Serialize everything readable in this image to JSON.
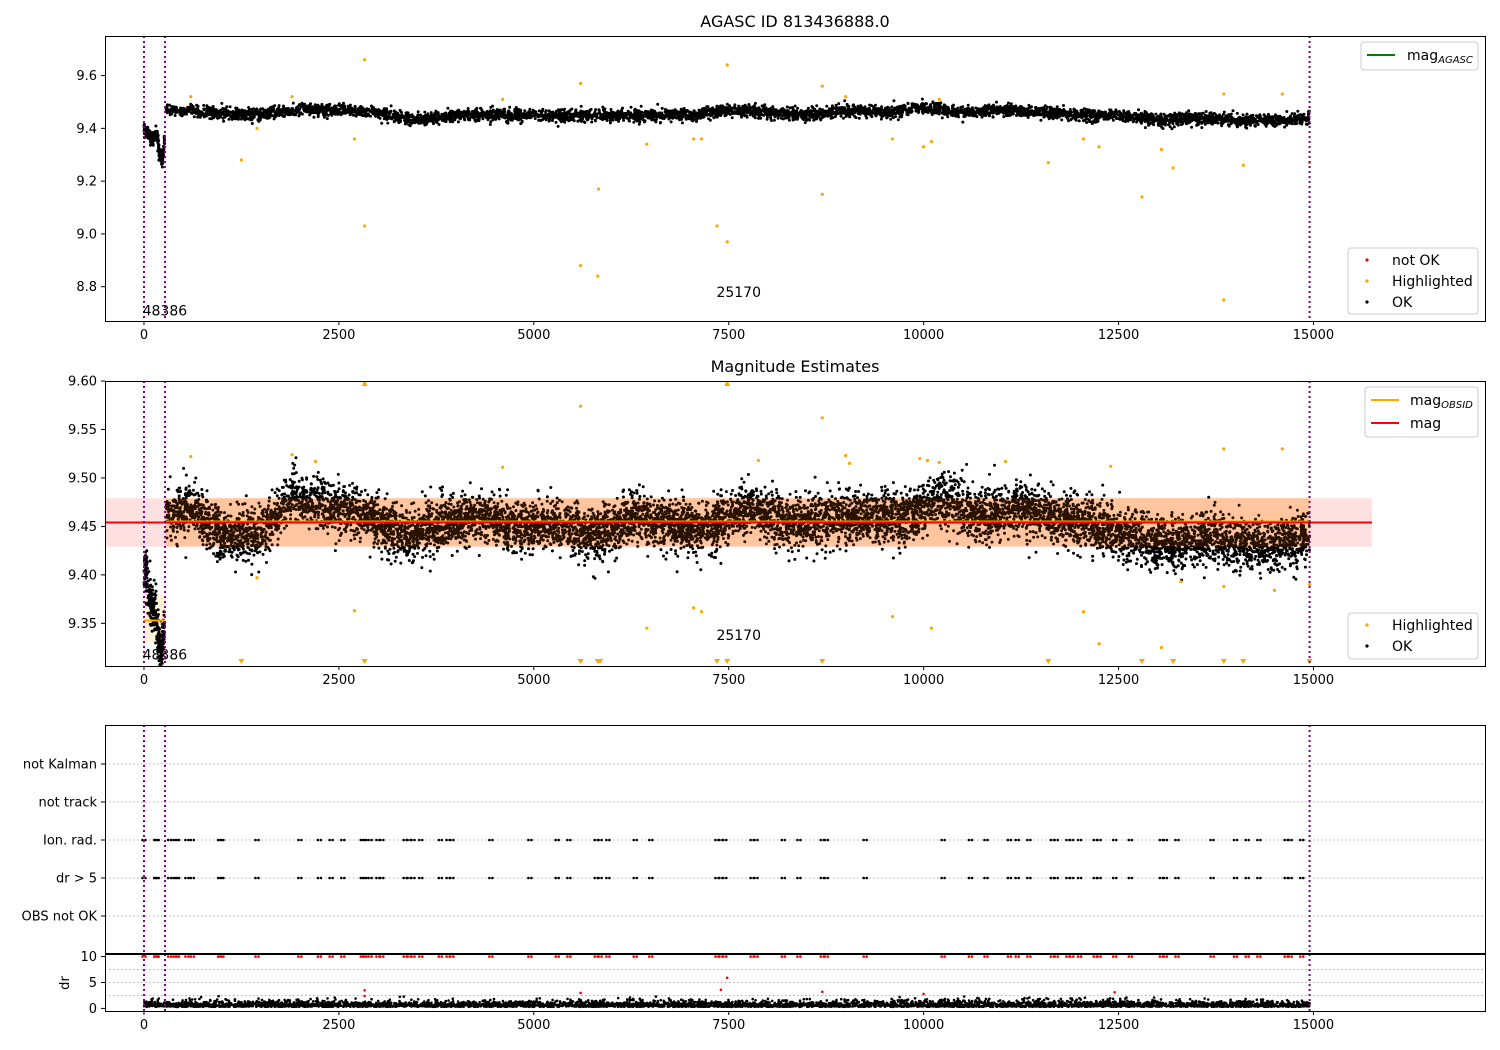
{
  "chart_data": [
    {
      "type": "scatter",
      "title": "AGASC ID 813436888.0",
      "xlim": [
        -500,
        17200
      ],
      "ylim": [
        8.67,
        9.75
      ],
      "xticks": [
        "0",
        "2500",
        "5000",
        "7500",
        "10000",
        "12500",
        "15000"
      ],
      "yticks": [
        "8.8",
        "9.0",
        "9.2",
        "9.4",
        "9.6"
      ],
      "xtick_values": [
        0,
        2500,
        5000,
        7500,
        10000,
        12500,
        15000
      ],
      "ytick_values": [
        8.8,
        9.0,
        9.2,
        9.4,
        9.6
      ],
      "obsid_boundaries": [
        0,
        270,
        14950
      ],
      "obsid_labels": [
        {
          "text": "48386",
          "x": 140,
          "y": 8.71
        },
        {
          "text": "25170",
          "x": 7500,
          "y": 8.78
        }
      ],
      "legend_top": [
        {
          "label": "mag",
          "sub": "AGASC",
          "color": "#008000"
        }
      ],
      "legend_bottom": [
        {
          "label": "not OK",
          "color": "#ff0000"
        },
        {
          "label": "Highlighted",
          "color": "#ffa500"
        },
        {
          "label": "OK",
          "color": "#000000"
        }
      ],
      "ok_trend": [
        {
          "x": 280,
          "y": 9.47
        },
        {
          "x": 800,
          "y": 9.46
        },
        {
          "x": 1400,
          "y": 9.45
        },
        {
          "x": 2000,
          "y": 9.47
        },
        {
          "x": 2500,
          "y": 9.47
        },
        {
          "x": 3000,
          "y": 9.46
        },
        {
          "x": 3500,
          "y": 9.43
        },
        {
          "x": 4000,
          "y": 9.45
        },
        {
          "x": 4500,
          "y": 9.45
        },
        {
          "x": 5000,
          "y": 9.45
        },
        {
          "x": 5500,
          "y": 9.45
        },
        {
          "x": 6000,
          "y": 9.45
        },
        {
          "x": 6500,
          "y": 9.45
        },
        {
          "x": 7000,
          "y": 9.45
        },
        {
          "x": 7500,
          "y": 9.47
        },
        {
          "x": 8000,
          "y": 9.46
        },
        {
          "x": 8500,
          "y": 9.45
        },
        {
          "x": 9000,
          "y": 9.47
        },
        {
          "x": 9500,
          "y": 9.46
        },
        {
          "x": 10000,
          "y": 9.48
        },
        {
          "x": 10500,
          "y": 9.46
        },
        {
          "x": 11000,
          "y": 9.47
        },
        {
          "x": 11500,
          "y": 9.46
        },
        {
          "x": 12000,
          "y": 9.45
        },
        {
          "x": 12500,
          "y": 9.45
        },
        {
          "x": 13000,
          "y": 9.43
        },
        {
          "x": 13500,
          "y": 9.44
        },
        {
          "x": 14000,
          "y": 9.43
        },
        {
          "x": 14500,
          "y": 9.43
        },
        {
          "x": 14950,
          "y": 9.44
        }
      ],
      "ok_first_segment": [
        {
          "x": 0,
          "y": 9.4
        },
        {
          "x": 60,
          "y": 9.38
        },
        {
          "x": 120,
          "y": 9.36
        },
        {
          "x": 170,
          "y": 9.38
        },
        {
          "x": 200,
          "y": 9.3
        },
        {
          "x": 240,
          "y": 9.28
        },
        {
          "x": 265,
          "y": 9.36
        }
      ],
      "highlighted_points": [
        [
          1250,
          9.28
        ],
        [
          1450,
          9.4
        ],
        [
          1900,
          9.52
        ],
        [
          2700,
          9.36
        ],
        [
          2830,
          9.66
        ],
        [
          2830,
          9.03
        ],
        [
          5600,
          9.57
        ],
        [
          5600,
          8.88
        ],
        [
          5820,
          8.84
        ],
        [
          5830,
          9.17
        ],
        [
          6450,
          9.34
        ],
        [
          7050,
          9.36
        ],
        [
          7150,
          9.36
        ],
        [
          7350,
          9.03
        ],
        [
          7480,
          9.64
        ],
        [
          7480,
          8.97
        ],
        [
          8700,
          9.56
        ],
        [
          8700,
          9.15
        ],
        [
          9600,
          9.36
        ],
        [
          10000,
          9.33
        ],
        [
          10100,
          9.35
        ],
        [
          11600,
          9.27
        ],
        [
          12050,
          9.36
        ],
        [
          12250,
          9.33
        ],
        [
          12800,
          9.14
        ],
        [
          13050,
          9.32
        ],
        [
          13200,
          9.25
        ],
        [
          13850,
          9.53
        ],
        [
          13850,
          8.75
        ],
        [
          14100,
          9.26
        ],
        [
          14600,
          9.53
        ],
        [
          14950,
          9.27
        ],
        [
          4600,
          9.51
        ],
        [
          600,
          9.52
        ],
        [
          10200,
          9.51
        ],
        [
          9000,
          9.52
        ]
      ]
    },
    {
      "type": "scatter",
      "title": "Magnitude Estimates",
      "xlim": [
        -500,
        17200
      ],
      "ylim": [
        9.306,
        9.6
      ],
      "xticks": [
        "0",
        "2500",
        "5000",
        "7500",
        "10000",
        "12500",
        "15000"
      ],
      "yticks": [
        "9.35",
        "9.40",
        "9.45",
        "9.50",
        "9.55",
        "9.60"
      ],
      "xtick_values": [
        0,
        2500,
        5000,
        7500,
        10000,
        12500,
        15000
      ],
      "ytick_values": [
        9.35,
        9.4,
        9.45,
        9.5,
        9.55,
        9.6
      ],
      "obsid_boundaries": [
        0,
        270,
        14950
      ],
      "obsid_labels": [
        {
          "text": "48386",
          "x": 140,
          "y": 9.318
        },
        {
          "text": "25170",
          "x": 7500,
          "y": 9.338
        }
      ],
      "mag": 9.454,
      "mag_band": [
        9.429,
        9.479
      ],
      "mag_extent": [
        -500,
        15750
      ],
      "mag_obsid_segments": [
        {
          "x0": 0,
          "x1": 270,
          "y": 9.353,
          "band": [
            9.33,
            9.38
          ]
        },
        {
          "x0": 270,
          "x1": 14950,
          "y": 9.455,
          "band": [
            9.43,
            9.48
          ]
        }
      ],
      "legend_top": [
        {
          "label": "mag",
          "sub": "OBSID",
          "color": "#ffa500"
        },
        {
          "label": "mag",
          "sub": "",
          "color": "#ff0000"
        }
      ],
      "legend_bottom": [
        {
          "label": "Highlighted",
          "color": "#ffa500"
        },
        {
          "label": "OK",
          "color": "#000000"
        }
      ],
      "ok_trend": [
        {
          "x": 280,
          "y": 9.46
        },
        {
          "x": 600,
          "y": 9.47
        },
        {
          "x": 1000,
          "y": 9.44
        },
        {
          "x": 1400,
          "y": 9.44
        },
        {
          "x": 1900,
          "y": 9.48
        },
        {
          "x": 2400,
          "y": 9.47
        },
        {
          "x": 2900,
          "y": 9.46
        },
        {
          "x": 3400,
          "y": 9.44
        },
        {
          "x": 3800,
          "y": 9.45
        },
        {
          "x": 4300,
          "y": 9.46
        },
        {
          "x": 4800,
          "y": 9.45
        },
        {
          "x": 5300,
          "y": 9.45
        },
        {
          "x": 5800,
          "y": 9.44
        },
        {
          "x": 6300,
          "y": 9.46
        },
        {
          "x": 6800,
          "y": 9.45
        },
        {
          "x": 7300,
          "y": 9.45
        },
        {
          "x": 7800,
          "y": 9.47
        },
        {
          "x": 8300,
          "y": 9.45
        },
        {
          "x": 8800,
          "y": 9.46
        },
        {
          "x": 9300,
          "y": 9.46
        },
        {
          "x": 9800,
          "y": 9.46
        },
        {
          "x": 10200,
          "y": 9.48
        },
        {
          "x": 10700,
          "y": 9.46
        },
        {
          "x": 11200,
          "y": 9.47
        },
        {
          "x": 11700,
          "y": 9.46
        },
        {
          "x": 12200,
          "y": 9.45
        },
        {
          "x": 12700,
          "y": 9.44
        },
        {
          "x": 13200,
          "y": 9.43
        },
        {
          "x": 13700,
          "y": 9.44
        },
        {
          "x": 14200,
          "y": 9.43
        },
        {
          "x": 14600,
          "y": 9.43
        },
        {
          "x": 14950,
          "y": 9.44
        }
      ],
      "ok_first_segment": [
        {
          "x": 0,
          "y": 9.41
        },
        {
          "x": 50,
          "y": 9.39
        },
        {
          "x": 100,
          "y": 9.37
        },
        {
          "x": 150,
          "y": 9.36
        },
        {
          "x": 190,
          "y": 9.33
        },
        {
          "x": 230,
          "y": 9.32
        },
        {
          "x": 265,
          "y": 9.35
        }
      ],
      "highlighted_points": [
        [
          1450,
          9.397
        ],
        [
          2700,
          9.363
        ],
        [
          5600,
          9.574
        ],
        [
          6450,
          9.345
        ],
        [
          7050,
          9.366
        ],
        [
          7150,
          9.362
        ],
        [
          8700,
          9.562
        ],
        [
          9600,
          9.357
        ],
        [
          10100,
          9.345
        ],
        [
          12050,
          9.362
        ],
        [
          12250,
          9.329
        ],
        [
          13050,
          9.325
        ],
        [
          13850,
          9.53
        ],
        [
          13850,
          9.388
        ],
        [
          14600,
          9.53
        ],
        [
          14500,
          9.384
        ],
        [
          13300,
          9.393
        ],
        [
          600,
          9.522
        ],
        [
          1900,
          9.524
        ],
        [
          2200,
          9.517
        ],
        [
          4600,
          9.511
        ],
        [
          7880,
          9.518
        ],
        [
          9000,
          9.523
        ],
        [
          9050,
          9.515
        ],
        [
          9950,
          9.52
        ],
        [
          10050,
          9.518
        ],
        [
          10200,
          9.516
        ],
        [
          11050,
          9.517
        ],
        [
          12400,
          9.512
        ],
        [
          14950,
          9.39
        ],
        [
          7480,
          9.598
        ],
        [
          2830,
          9.598
        ]
      ],
      "clipped_markers": [
        1250,
        2830,
        5600,
        5820,
        5850,
        7350,
        7480,
        8700,
        11600,
        12800,
        13200,
        13850,
        14100,
        14950
      ]
    },
    {
      "type": "scatter",
      "title": "",
      "xlim": [
        -500,
        17200
      ],
      "xticks": [
        "0",
        "2500",
        "5000",
        "7500",
        "10000",
        "12500",
        "15000"
      ],
      "xtick_values": [
        0,
        2500,
        5000,
        7500,
        10000,
        12500,
        15000
      ],
      "obsid_boundaries": [
        0,
        270,
        14950
      ],
      "flag_rows": [
        "not Kalman",
        "not track",
        "Ion. rad.",
        "dr > 5",
        "OBS not OK"
      ],
      "flag_events": [
        0,
        150,
        170,
        330,
        400,
        430,
        550,
        620,
        970,
        1000,
        1450,
        2000,
        2250,
        2400,
        2550,
        2800,
        2830,
        2900,
        3000,
        3050,
        3350,
        3400,
        3450,
        3550,
        3800,
        3900,
        3950,
        4450,
        4950,
        5300,
        5450,
        5800,
        5850,
        5950,
        6300,
        6500,
        7350,
        7400,
        7450,
        7800,
        7850,
        8200,
        8400,
        8700,
        8750,
        9250,
        10250,
        10600,
        10800,
        11100,
        11200,
        11350,
        11650,
        11700,
        11850,
        11900,
        12000,
        12200,
        12250,
        12450,
        12650,
        13050,
        13100,
        13250,
        13700,
        14000,
        14150,
        14300,
        14650,
        14700,
        14850
      ],
      "dr": {
        "ylabel": "dr",
        "yticks": [
          "0",
          "5",
          "10"
        ],
        "ytick_values": [
          0,
          5,
          10
        ],
        "ylim": [
          -0.5,
          10.5
        ],
        "not_ok_points": [
          [
            2830,
            2.4
          ],
          [
            2830,
            3.5
          ],
          [
            5600,
            3.0
          ],
          [
            7400,
            3.6
          ],
          [
            7480,
            5.9
          ],
          [
            8700,
            3.2
          ],
          [
            10000,
            2.8
          ],
          [
            12450,
            3.1
          ]
        ]
      }
    }
  ]
}
